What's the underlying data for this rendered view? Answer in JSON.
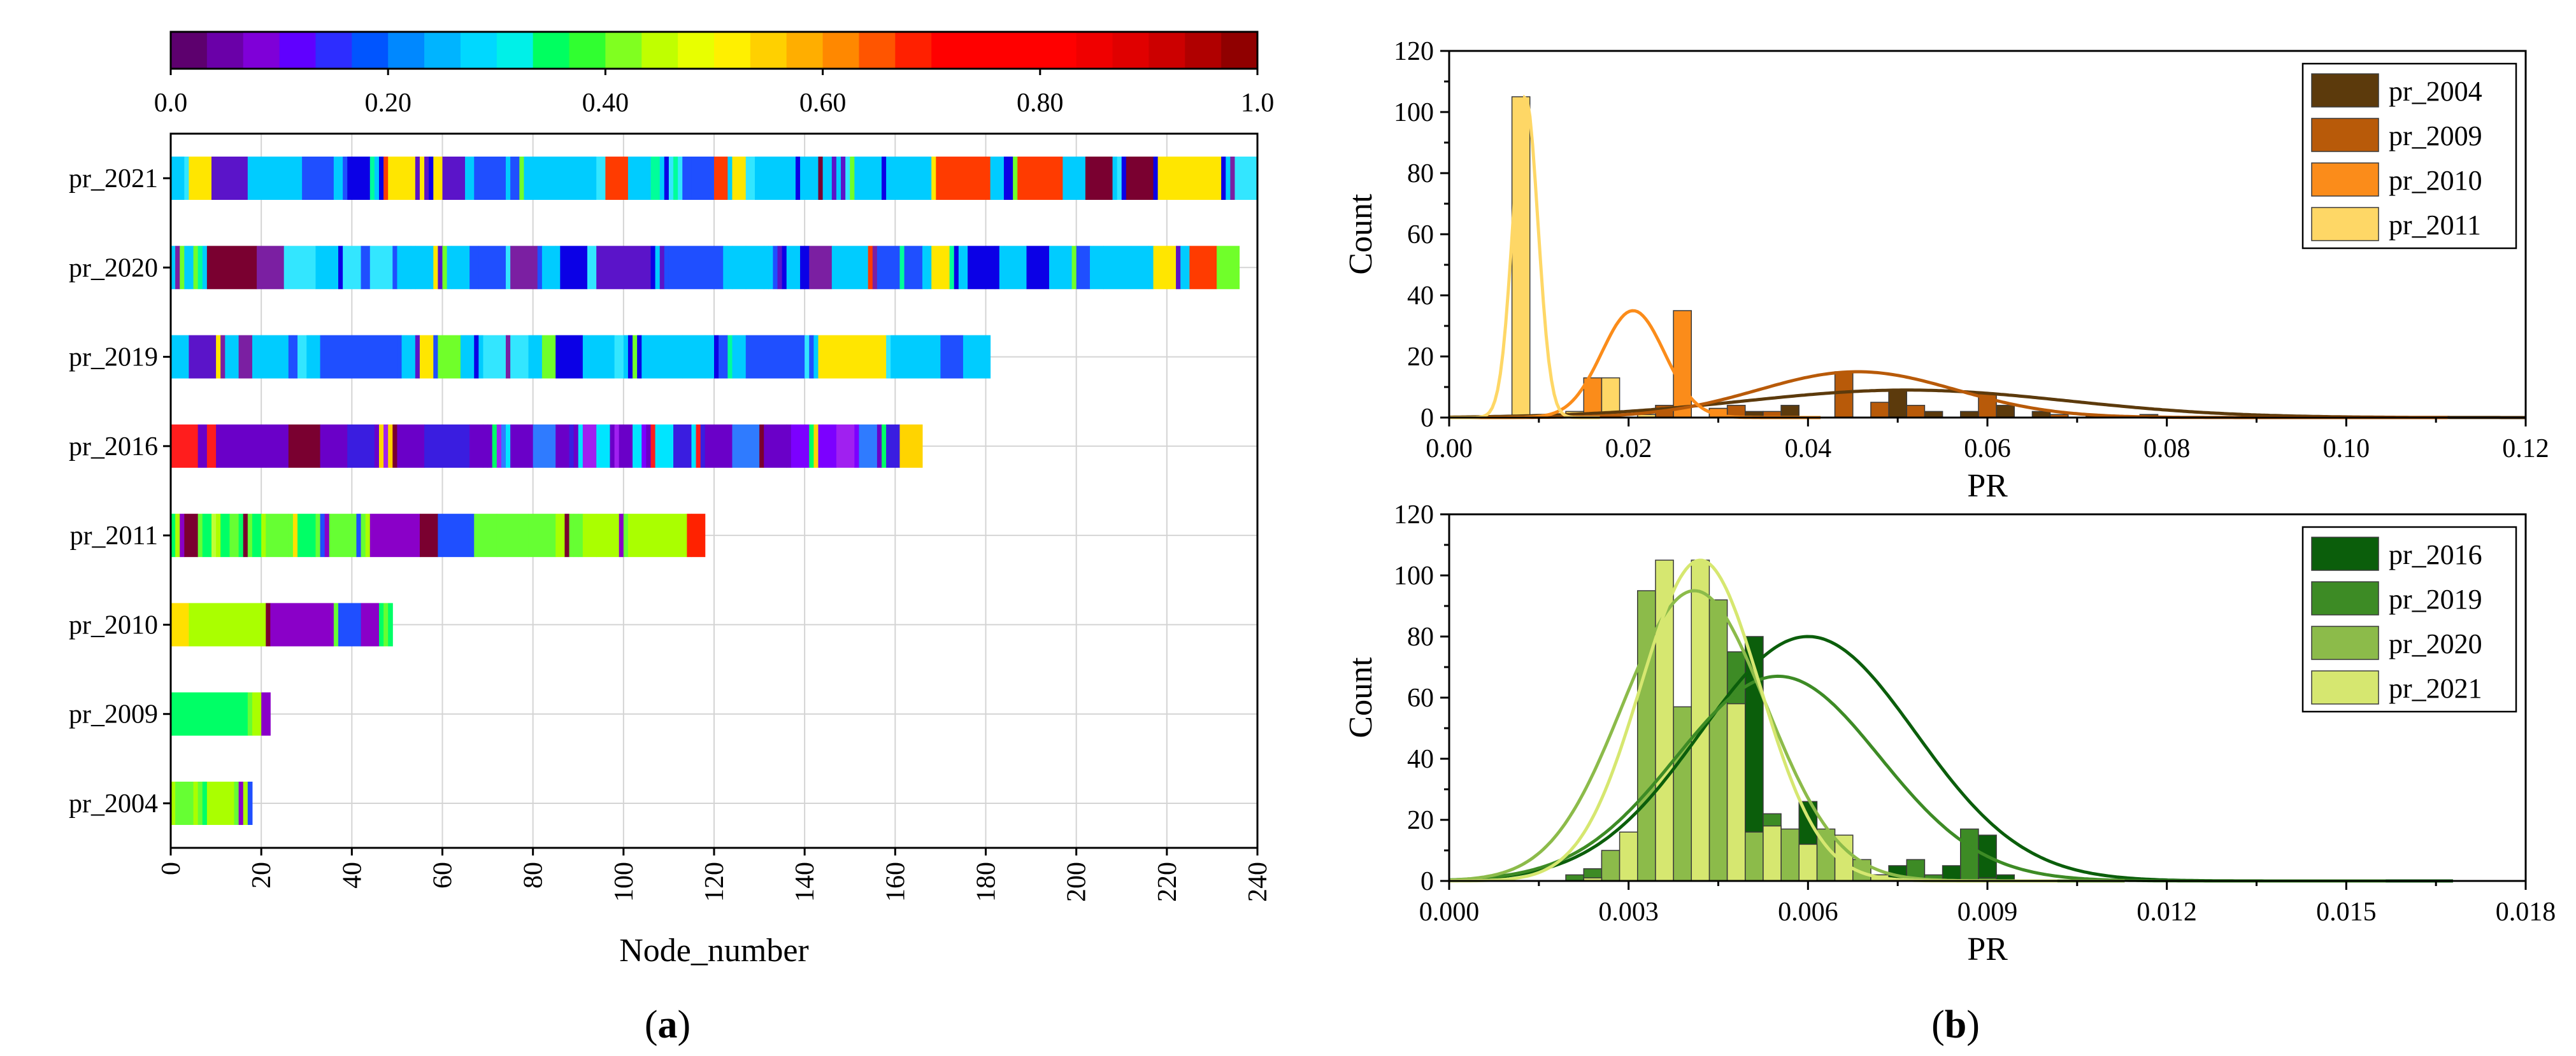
{
  "panels": {
    "a": {
      "label": "(a)",
      "letter": "a"
    },
    "b": {
      "label": "(b)",
      "letter": "b"
    }
  },
  "chart_data": [
    {
      "type": "heatmap",
      "id": "node-heatmap",
      "xlabel": "Node_number",
      "ylabel": "",
      "xlim": [
        0,
        240
      ],
      "xticks": [
        0,
        20,
        40,
        60,
        80,
        100,
        120,
        140,
        160,
        180,
        200,
        220,
        240
      ],
      "grid": true,
      "rows": [
        {
          "name": "pr_2021",
          "nodes": 240,
          "pattern": "blue-cyan"
        },
        {
          "name": "pr_2020",
          "nodes": 236,
          "pattern": "blue-cyan"
        },
        {
          "name": "pr_2019",
          "nodes": 181,
          "pattern": "blue-cyan"
        },
        {
          "name": "pr_2016",
          "nodes": 166,
          "pattern": "purple"
        },
        {
          "name": "pr_2011",
          "nodes": 118,
          "pattern": "green"
        },
        {
          "name": "pr_2010",
          "nodes": 49,
          "pattern": "green"
        },
        {
          "name": "pr_2009",
          "nodes": 22,
          "pattern": "green"
        },
        {
          "name": "pr_2004",
          "nodes": 18,
          "pattern": "green"
        }
      ],
      "colorbar": {
        "range": [
          0,
          1
        ],
        "tick_labels": [
          "0.0",
          "0.20",
          "0.40",
          "0.60",
          "0.80",
          "1.0"
        ],
        "colors": [
          "#5d006e",
          "#6a00a8",
          "#7f00d8",
          "#6000ff",
          "#2d2dff",
          "#0055ff",
          "#0088ff",
          "#00b4ff",
          "#00d8ff",
          "#00f0e8",
          "#00ff60",
          "#30ff30",
          "#80ff20",
          "#c0ff00",
          "#e8ff00",
          "#fff000",
          "#ffd000",
          "#ffae00",
          "#ff8800",
          "#ff5500",
          "#ff2000",
          "#ff0000",
          "#ff0000",
          "#ff0000",
          "#ff0000",
          "#f00000",
          "#e00000",
          "#cc0000",
          "#b00000",
          "#900000"
        ]
      }
    },
    {
      "type": "histogram",
      "id": "pr-hist-top",
      "xlabel": "PR",
      "ylabel": "Count",
      "xlim": [
        0,
        0.12
      ],
      "ylim": [
        0,
        120
      ],
      "xtick_labels": [
        "0.00",
        "0.02",
        "0.04",
        "0.06",
        "0.08",
        "0.10",
        "0.12"
      ],
      "ytick_labels": [
        "0",
        "20",
        "40",
        "60",
        "80",
        "100",
        "120"
      ],
      "bin_width": 0.002,
      "legend_position": "top-right",
      "series": [
        {
          "name": "pr_2004",
          "color": "#5c3a0c",
          "bars": [
            [
              0.022,
              1
            ],
            [
              0.026,
              2
            ],
            [
              0.03,
              3
            ],
            [
              0.034,
              2
            ],
            [
              0.038,
              4
            ],
            [
              0.044,
              7
            ],
            [
              0.05,
              9
            ],
            [
              0.054,
              2
            ],
            [
              0.058,
              2
            ],
            [
              0.062,
              4
            ],
            [
              0.066,
              2
            ],
            [
              0.072,
              1
            ],
            [
              0.078,
              1
            ]
          ],
          "curve": {
            "mean": 0.051,
            "sd": 0.018,
            "peak": 9
          }
        },
        {
          "name": "pr_2009",
          "color": "#b85a09",
          "bars": [
            [
              0.024,
              4
            ],
            [
              0.032,
              4
            ],
            [
              0.036,
              2
            ],
            [
              0.044,
              15
            ],
            [
              0.048,
              5
            ],
            [
              0.052,
              4
            ],
            [
              0.06,
              8
            ],
            [
              0.068,
              1
            ]
          ],
          "curve": {
            "mean": 0.0455,
            "sd": 0.011,
            "peak": 15
          }
        },
        {
          "name": "pr_2010",
          "color": "#fb8c1a",
          "bars": [
            [
              0.016,
              13
            ],
            [
              0.022,
              1
            ],
            [
              0.026,
              35
            ],
            [
              0.03,
              3
            ]
          ],
          "curve": {
            "mean": 0.0205,
            "sd": 0.0035,
            "peak": 35
          }
        },
        {
          "name": "pr_2011",
          "color": "#fed766",
          "bars": [
            [
              0.008,
              105
            ],
            [
              0.014,
              2
            ],
            [
              0.018,
              13
            ],
            [
              0.022,
              1
            ]
          ],
          "curve": {
            "mean": 0.0085,
            "sd": 0.0014,
            "peak": 105
          }
        }
      ]
    },
    {
      "type": "histogram",
      "id": "pr-hist-bottom",
      "xlabel": "PR",
      "ylabel": "Count",
      "xlim": [
        0,
        0.018
      ],
      "ylim": [
        0,
        120
      ],
      "xtick_labels": [
        "0.000",
        "0.003",
        "0.006",
        "0.009",
        "0.012",
        "0.015",
        "0.018"
      ],
      "ytick_labels": [
        "0",
        "20",
        "40",
        "60",
        "80",
        "100",
        "120"
      ],
      "bin_width": 0.0003,
      "legend_position": "top-right",
      "series": [
        {
          "name": "pr_2016",
          "color": "#0b5e0b",
          "bars": [
            [
              0.0024,
              3
            ],
            [
              0.0027,
              9
            ],
            [
              0.0036,
              22
            ],
            [
              0.0042,
              45
            ],
            [
              0.0048,
              60
            ],
            [
              0.0051,
              80
            ],
            [
              0.006,
              26
            ],
            [
              0.0066,
              8
            ],
            [
              0.0075,
              5
            ],
            [
              0.0084,
              5
            ],
            [
              0.009,
              15
            ],
            [
              0.0093,
              2
            ]
          ],
          "curve": {
            "mean": 0.006,
            "sd": 0.0018,
            "peak": 80
          }
        },
        {
          "name": "pr_2019",
          "color": "#3d8b25",
          "bars": [
            [
              0.0021,
              2
            ],
            [
              0.0024,
              4
            ],
            [
              0.003,
              7
            ],
            [
              0.0039,
              8
            ],
            [
              0.0045,
              67
            ],
            [
              0.0048,
              75
            ],
            [
              0.0054,
              22
            ],
            [
              0.0063,
              7
            ],
            [
              0.0069,
              6
            ],
            [
              0.0078,
              7
            ],
            [
              0.0081,
              2
            ],
            [
              0.0087,
              17
            ],
            [
              0.009,
              1
            ]
          ],
          "curve": {
            "mean": 0.0055,
            "sd": 0.0017,
            "peak": 67
          }
        },
        {
          "name": "pr_2020",
          "color": "#8cbb4a",
          "bars": [
            [
              0.0027,
              10
            ],
            [
              0.0033,
              95
            ],
            [
              0.0039,
              57
            ],
            [
              0.0045,
              92
            ],
            [
              0.0051,
              16
            ],
            [
              0.0057,
              17
            ],
            [
              0.0063,
              17
            ],
            [
              0.0069,
              7
            ],
            [
              0.0072,
              2
            ],
            [
              0.0078,
              1
            ]
          ],
          "curve": {
            "mean": 0.0041,
            "sd": 0.0012,
            "peak": 95
          }
        },
        {
          "name": "pr_2021",
          "color": "#d6e770",
          "bars": [
            [
              0.0024,
              1
            ],
            [
              0.003,
              16
            ],
            [
              0.0036,
              105
            ],
            [
              0.0042,
              105
            ],
            [
              0.0048,
              58
            ],
            [
              0.0054,
              18
            ],
            [
              0.006,
              12
            ],
            [
              0.0066,
              15
            ],
            [
              0.0072,
              2
            ]
          ],
          "curve": {
            "mean": 0.0042,
            "sd": 0.001,
            "peak": 105
          }
        }
      ]
    }
  ]
}
